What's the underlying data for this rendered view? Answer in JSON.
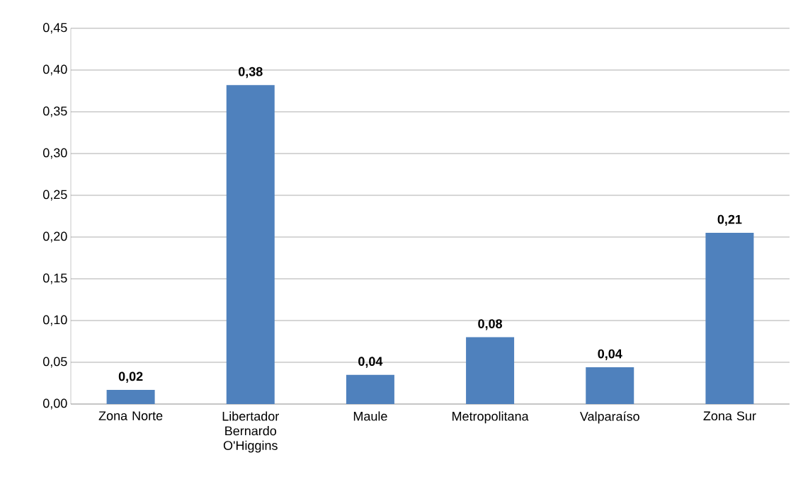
{
  "chart_data": {
    "type": "bar",
    "categories": [
      "Zona Norte",
      "Libertador Bernardo O'Higgins",
      "Maule",
      "Metropolitana",
      "Valparaíso",
      "Zona Sur"
    ],
    "values": [
      0.017,
      0.382,
      0.035,
      0.08,
      0.044,
      0.205
    ],
    "value_labels": [
      "0,02",
      "0,38",
      "0,04",
      "0,08",
      "0,04",
      "0,21"
    ],
    "color": "#4f81bd",
    "ylim": [
      0,
      0.45
    ],
    "yticks": [
      {
        "value": 0,
        "label": "0,00"
      },
      {
        "value": 0.05,
        "label": "0,05"
      },
      {
        "value": 0.1,
        "label": "0,10"
      },
      {
        "value": 0.15,
        "label": "0,15"
      },
      {
        "value": 0.2,
        "label": "0,20"
      },
      {
        "value": 0.25,
        "label": "0,25"
      },
      {
        "value": 0.3,
        "label": "0,30"
      },
      {
        "value": 0.35,
        "label": "0,35"
      },
      {
        "value": 0.4,
        "label": "0,40"
      },
      {
        "value": 0.45,
        "label": "0,45"
      }
    ],
    "grid": "y"
  }
}
